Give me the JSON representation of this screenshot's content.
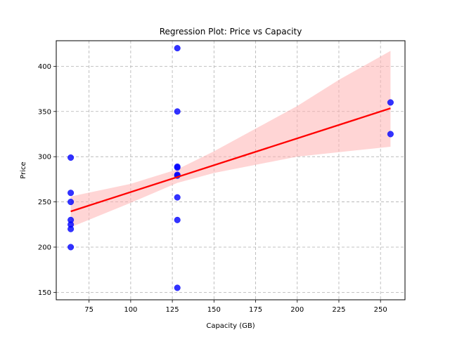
{
  "chart_data": {
    "type": "scatter",
    "title": "Regression Plot: Price vs Capacity",
    "xlabel": "Capacity (GB)",
    "ylabel": "Price",
    "xlim": [
      55.3,
      264.7
    ],
    "ylim": [
      141.75,
      428.25
    ],
    "xticks": [
      75,
      100,
      125,
      150,
      175,
      200,
      225,
      250
    ],
    "yticks": [
      150,
      200,
      250,
      300,
      350,
      400
    ],
    "grid": true,
    "series": [
      {
        "kind": "points",
        "color": "#0000ff",
        "points": [
          {
            "x": 64,
            "y": 299
          },
          {
            "x": 64,
            "y": 260
          },
          {
            "x": 64,
            "y": 250
          },
          {
            "x": 64,
            "y": 230
          },
          {
            "x": 64,
            "y": 225
          },
          {
            "x": 64,
            "y": 220
          },
          {
            "x": 64,
            "y": 200
          },
          {
            "x": 128,
            "y": 420
          },
          {
            "x": 128,
            "y": 350
          },
          {
            "x": 128,
            "y": 289
          },
          {
            "x": 128,
            "y": 288
          },
          {
            "x": 128,
            "y": 280
          },
          {
            "x": 128,
            "y": 279
          },
          {
            "x": 128,
            "y": 255
          },
          {
            "x": 128,
            "y": 230
          },
          {
            "x": 128,
            "y": 155
          },
          {
            "x": 256,
            "y": 360
          },
          {
            "x": 256,
            "y": 325
          }
        ]
      },
      {
        "kind": "regression-line",
        "color": "#ff0000",
        "points": [
          {
            "x": 64,
            "y": 239.5
          },
          {
            "x": 256,
            "y": 353.5
          }
        ]
      },
      {
        "kind": "confidence-band",
        "color": "#ffb3b3",
        "upper": [
          {
            "x": 64,
            "y": 256
          },
          {
            "x": 100,
            "y": 270
          },
          {
            "x": 128,
            "y": 286
          },
          {
            "x": 150,
            "y": 306
          },
          {
            "x": 175,
            "y": 331
          },
          {
            "x": 200,
            "y": 356
          },
          {
            "x": 225,
            "y": 385
          },
          {
            "x": 256,
            "y": 417
          }
        ],
        "lower": [
          {
            "x": 64,
            "y": 222
          },
          {
            "x": 100,
            "y": 249
          },
          {
            "x": 128,
            "y": 271
          },
          {
            "x": 150,
            "y": 282
          },
          {
            "x": 175,
            "y": 291
          },
          {
            "x": 200,
            "y": 300
          },
          {
            "x": 225,
            "y": 305
          },
          {
            "x": 256,
            "y": 311
          }
        ]
      }
    ]
  }
}
